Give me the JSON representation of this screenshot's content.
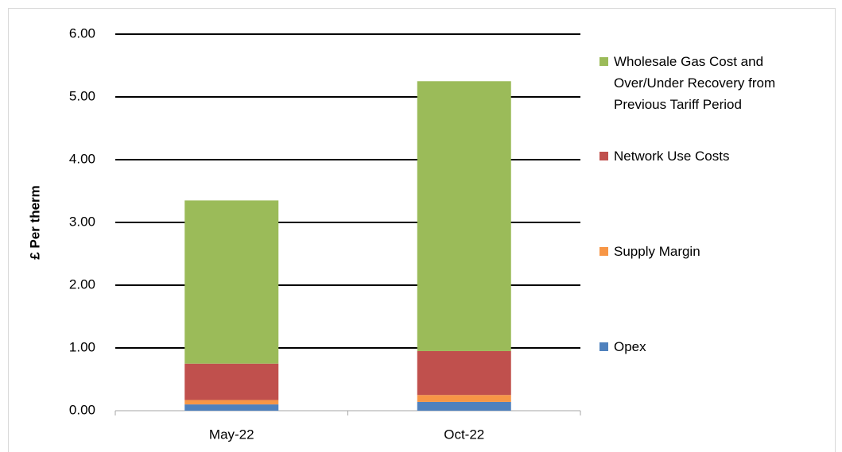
{
  "chart_data": {
    "type": "stacked_bar",
    "y_label": "£ Per therm",
    "categories": [
      "May-22",
      "Oct-22"
    ],
    "series": [
      {
        "name": "Opex",
        "color": "#4f81bd",
        "values": [
          0.1,
          0.14
        ]
      },
      {
        "name": "Supply Margin",
        "color": "#f79646",
        "values": [
          0.07,
          0.11
        ]
      },
      {
        "name": "Network Use Costs",
        "color": "#c0504d",
        "values": [
          0.58,
          0.7
        ]
      },
      {
        "name": "Wholesale Gas Cost and Over/Under Recovery from Previous Tariff Period",
        "color": "#9bbb59",
        "values": [
          2.6,
          4.3
        ]
      }
    ],
    "ylim": [
      0,
      6
    ],
    "yticks": [
      {
        "value": 0,
        "label": "0.00"
      },
      {
        "value": 1,
        "label": "1.00"
      },
      {
        "value": 2,
        "label": "2.00"
      },
      {
        "value": 3,
        "label": "3.00"
      },
      {
        "value": 4,
        "label": "4.00"
      },
      {
        "value": 5,
        "label": "5.00"
      },
      {
        "value": 6,
        "label": "6.00"
      }
    ],
    "grid": true,
    "legend": "right"
  }
}
